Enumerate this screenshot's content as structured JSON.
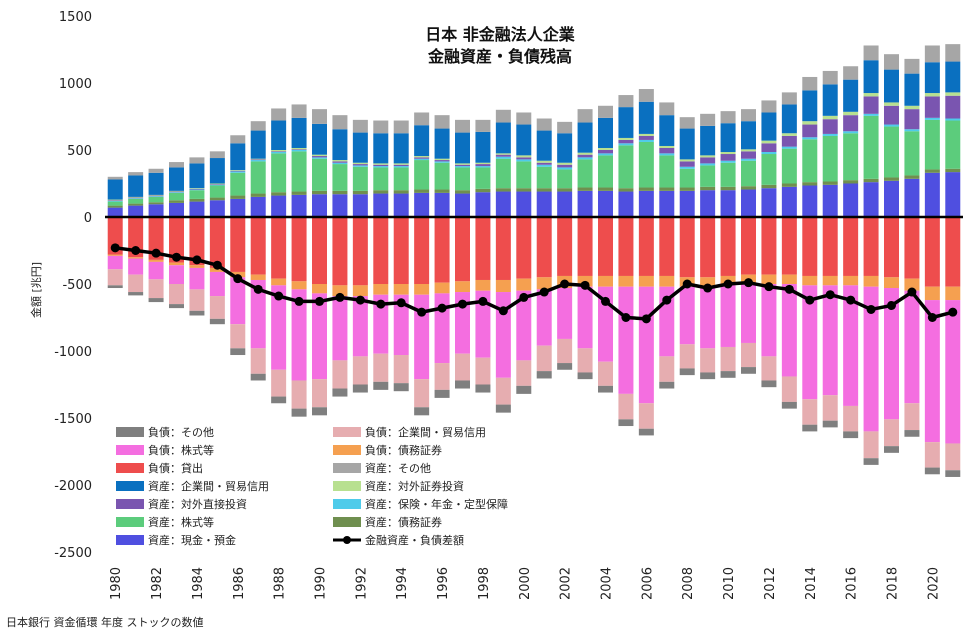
{
  "chart_data": {
    "type": "bar",
    "title_lines": [
      "日本 非金融法人企業",
      "金融資産・負債残高"
    ],
    "ylabel": "金額 [兆円]",
    "ylim": [
      -2500,
      1500
    ],
    "yticks": [
      1500,
      1000,
      500,
      0,
      -500,
      -1000,
      -1500,
      -2000,
      -2500
    ],
    "x_tick_labels": [
      "1980",
      "1982",
      "1984",
      "1986",
      "1988",
      "1990",
      "1992",
      "1994",
      "1996",
      "1998",
      "2000",
      "2002",
      "2004",
      "2006",
      "2008",
      "2010",
      "2012",
      "2014",
      "2016",
      "2018",
      "2020"
    ],
    "x": [
      1980,
      1981,
      1982,
      1983,
      1984,
      1985,
      1986,
      1987,
      1988,
      1989,
      1990,
      1991,
      1992,
      1993,
      1994,
      1995,
      1996,
      1997,
      1998,
      1999,
      2000,
      2001,
      2002,
      2003,
      2004,
      2005,
      2006,
      2007,
      2008,
      2009,
      2010,
      2011,
      2012,
      2013,
      2014,
      2015,
      2016,
      2017,
      2018,
      2019,
      2020,
      2021
    ],
    "asset_series": [
      {
        "name": "資産：現金・預金",
        "color": "#4f4fe0",
        "values": [
          70,
          85,
          95,
          105,
          115,
          125,
          135,
          150,
          160,
          165,
          170,
          170,
          170,
          175,
          175,
          180,
          180,
          175,
          185,
          190,
          190,
          190,
          190,
          195,
          195,
          190,
          195,
          195,
          195,
          200,
          200,
          205,
          215,
          225,
          235,
          240,
          250,
          260,
          270,
          285,
          330,
          335
        ]
      },
      {
        "name": "資産：債務証券",
        "color": "#6f8f4f",
        "values": [
          15,
          15,
          15,
          20,
          20,
          20,
          25,
          25,
          25,
          25,
          25,
          25,
          25,
          25,
          25,
          25,
          25,
          25,
          25,
          25,
          25,
          25,
          25,
          25,
          25,
          25,
          25,
          25,
          25,
          25,
          25,
          25,
          25,
          25,
          25,
          25,
          25,
          25,
          25,
          25,
          25,
          25
        ]
      },
      {
        "name": "資産：株式等",
        "color": "#5ccc7c",
        "values": [
          30,
          35,
          40,
          55,
          65,
          90,
          170,
          240,
          290,
          300,
          240,
          200,
          180,
          170,
          170,
          220,
          200,
          170,
          160,
          220,
          200,
          160,
          140,
          210,
          240,
          320,
          340,
          240,
          140,
          160,
          180,
          190,
          230,
          260,
          320,
          340,
          350,
          470,
          380,
          330,
          370,
          360
        ]
      },
      {
        "name": "資産：保険・年金・定型保障",
        "color": "#4ecbea",
        "values": [
          5,
          5,
          5,
          5,
          5,
          5,
          10,
          10,
          10,
          10,
          10,
          10,
          10,
          10,
          10,
          10,
          10,
          10,
          10,
          15,
          15,
          15,
          15,
          15,
          15,
          15,
          15,
          15,
          15,
          15,
          15,
          15,
          15,
          15,
          15,
          15,
          15,
          15,
          15,
          15,
          15,
          15
        ]
      },
      {
        "name": "資産：対外直接投資",
        "color": "#7a55b0",
        "values": [
          5,
          5,
          5,
          5,
          5,
          5,
          5,
          5,
          5,
          5,
          10,
          10,
          10,
          10,
          10,
          10,
          10,
          10,
          15,
          15,
          15,
          15,
          20,
          20,
          25,
          25,
          30,
          40,
          40,
          45,
          50,
          55,
          65,
          80,
          95,
          110,
          120,
          130,
          140,
          150,
          160,
          170
        ]
      },
      {
        "name": "資産：対外証券投資",
        "color": "#b8e090",
        "values": [
          5,
          5,
          5,
          5,
          5,
          5,
          5,
          5,
          10,
          10,
          10,
          10,
          10,
          10,
          10,
          10,
          10,
          10,
          10,
          10,
          15,
          15,
          15,
          15,
          15,
          15,
          15,
          15,
          15,
          15,
          15,
          15,
          20,
          20,
          25,
          25,
          25,
          25,
          25,
          25,
          25,
          25
        ]
      },
      {
        "name": "資産：企業間・貿易信用",
        "color": "#0a70c0",
        "values": [
          150,
          160,
          165,
          175,
          185,
          190,
          200,
          210,
          220,
          225,
          230,
          230,
          225,
          225,
          225,
          230,
          225,
          230,
          230,
          230,
          230,
          225,
          220,
          225,
          225,
          230,
          240,
          230,
          230,
          220,
          215,
          210,
          210,
          215,
          230,
          235,
          240,
          245,
          245,
          240,
          230,
          230
        ]
      },
      {
        "name": "資産：その他",
        "color": "#a6a6a6",
        "values": [
          20,
          25,
          30,
          40,
          45,
          50,
          60,
          70,
          90,
          100,
          110,
          105,
          95,
          95,
          95,
          95,
          100,
          95,
          90,
          95,
          90,
          90,
          85,
          100,
          90,
          90,
          95,
          95,
          85,
          90,
          90,
          90,
          90,
          90,
          100,
          100,
          100,
          110,
          115,
          110,
          125,
          130
        ]
      }
    ],
    "liability_series": [
      {
        "name": "負債：貸出",
        "color": "#ee4d4d",
        "values": [
          280,
          300,
          320,
          340,
          360,
          380,
          410,
          430,
          460,
          480,
          500,
          510,
          510,
          500,
          500,
          500,
          490,
          480,
          470,
          470,
          460,
          450,
          440,
          440,
          440,
          440,
          440,
          440,
          450,
          450,
          440,
          430,
          430,
          430,
          440,
          440,
          440,
          440,
          450,
          460,
          520,
          520
        ]
      },
      {
        "name": "負債：債務証券",
        "color": "#f5a050",
        "values": [
          10,
          10,
          15,
          20,
          20,
          30,
          40,
          40,
          50,
          60,
          70,
          80,
          80,
          80,
          80,
          80,
          80,
          80,
          80,
          90,
          90,
          90,
          90,
          80,
          80,
          80,
          80,
          80,
          70,
          70,
          70,
          70,
          70,
          70,
          70,
          70,
          70,
          80,
          80,
          90,
          100,
          100
        ]
      },
      {
        "name": "負債：株式等",
        "color": "#f46ee0",
        "values": [
          100,
          120,
          130,
          140,
          160,
          180,
          350,
          510,
          630,
          680,
          640,
          480,
          450,
          440,
          450,
          630,
          520,
          460,
          500,
          640,
          520,
          420,
          380,
          460,
          560,
          800,
          870,
          520,
          430,
          460,
          460,
          440,
          540,
          690,
          850,
          820,
          900,
          1080,
          980,
          840,
          1060,
          1070
        ]
      },
      {
        "name": "負債：企業間・貿易信用",
        "color": "#e6adb0",
        "values": [
          120,
          130,
          140,
          150,
          160,
          170,
          180,
          190,
          200,
          210,
          210,
          210,
          210,
          210,
          210,
          210,
          200,
          200,
          200,
          200,
          190,
          190,
          180,
          180,
          180,
          190,
          190,
          190,
          180,
          180,
          180,
          180,
          180,
          190,
          190,
          190,
          190,
          200,
          200,
          200,
          190,
          200
        ]
      },
      {
        "name": "負債：その他",
        "color": "#7f7f7f",
        "values": [
          20,
          25,
          30,
          30,
          35,
          40,
          50,
          50,
          50,
          60,
          60,
          60,
          60,
          60,
          60,
          60,
          60,
          60,
          60,
          60,
          60,
          55,
          50,
          50,
          50,
          50,
          50,
          50,
          50,
          50,
          50,
          50,
          50,
          50,
          50,
          50,
          50,
          50,
          50,
          50,
          50,
          50
        ]
      }
    ],
    "net_series": {
      "name": "金融資産・負債差額",
      "color": "#000000",
      "values": [
        -230,
        -250,
        -270,
        -300,
        -320,
        -360,
        -460,
        -540,
        -590,
        -630,
        -630,
        -600,
        -620,
        -650,
        -640,
        -710,
        -680,
        -650,
        -630,
        -700,
        -600,
        -560,
        -500,
        -510,
        -630,
        -750,
        -760,
        -620,
        -500,
        -530,
        -500,
        -490,
        -520,
        -540,
        -620,
        -580,
        -620,
        -690,
        -660,
        -560,
        -750,
        -710
      ]
    },
    "legend": {
      "left": [
        "負債：その他",
        "負債：株式等",
        "負債：貸出",
        "資産：企業間・貿易信用",
        "資産：対外直接投資",
        "資産：株式等",
        "資産：現金・預金"
      ],
      "right": [
        "負債：企業間・貿易信用",
        "負債：債務証券",
        "資産：その他",
        "資産：対外証券投資",
        "資産：保険・年金・定型保障",
        "資産：債務証券",
        "金融資産・負債差額"
      ]
    },
    "grid": false
  },
  "source_note": "日本銀行 資金循環 年度 ストックの数値"
}
